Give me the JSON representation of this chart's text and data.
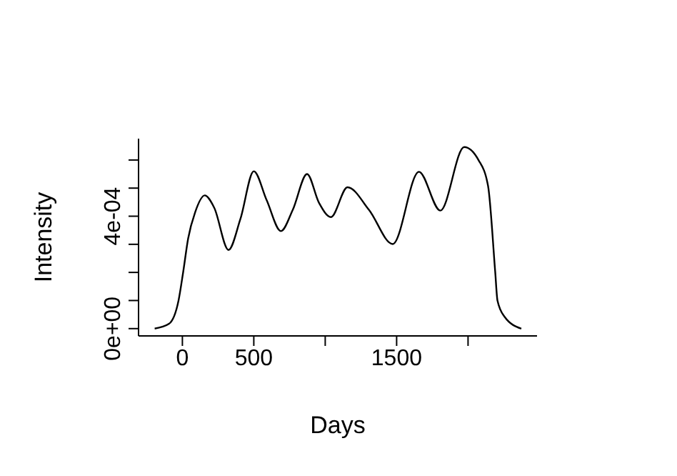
{
  "chart_data": {
    "type": "line",
    "xlabel": "Days",
    "ylabel": "Intensity",
    "x": [
      -194,
      -94,
      -27,
      6,
      40,
      90,
      156,
      223,
      323,
      406,
      500,
      590,
      690,
      773,
      873,
      956,
      1040,
      1156,
      1306,
      1473,
      1656,
      1806,
      1973,
      2073,
      2140,
      2190,
      2206,
      2256,
      2373
    ],
    "series": [
      {
        "color": "#000000",
        "values": [
          0,
          1.7e-05,
          0.0001,
          0.000203,
          0.00032,
          0.000415,
          0.000474,
          0.00043,
          0.00028,
          0.00039,
          0.00056,
          0.000457,
          0.000347,
          0.000423,
          0.00055,
          0.000448,
          0.000397,
          0.000503,
          0.000423,
          0.000301,
          0.000558,
          0.00042,
          0.000646,
          0.0006,
          0.000508,
          0.000203,
          0.0001,
          4.2e-05,
          0
        ]
      }
    ],
    "xlim": [
      -307,
      2483
    ],
    "xticks": [
      0,
      500,
      {
        "value": 1000,
        "label": null
      },
      1500,
      {
        "value": 2000,
        "label": null
      }
    ],
    "ylim": [
      -2.6e-05,
      0.000676
    ],
    "yticks": [
      {
        "value": 0,
        "label": "0e+00"
      },
      {
        "value": 0.0001,
        "label": null
      },
      {
        "value": 0.0002,
        "label": null
      },
      {
        "value": 0.0003,
        "label": null
      },
      {
        "value": 0.0004,
        "label": "4e-04"
      },
      {
        "value": 0.0005,
        "label": null
      },
      {
        "value": 0.0006,
        "label": null
      }
    ],
    "grid": false,
    "legend": false,
    "marker": "none",
    "line_style": "solid"
  }
}
